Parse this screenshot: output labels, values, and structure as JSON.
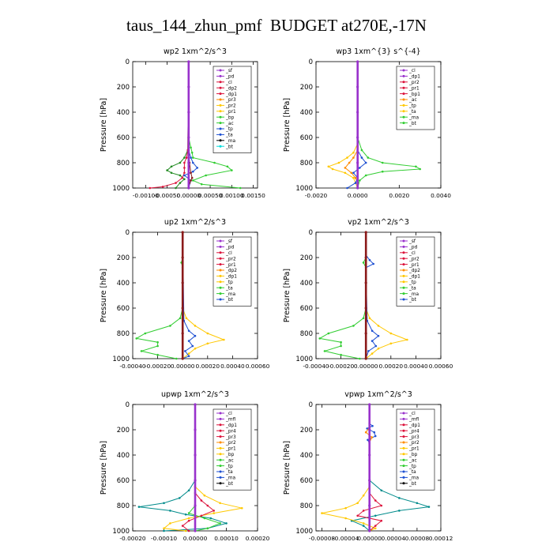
{
  "page": {
    "title": "taus_144_zhun_pmf  BUDGET at270E,-17N"
  },
  "colors": {
    "purple": "#9932cc",
    "red": "#dc143c",
    "orange": "#ff8c00",
    "yellow": "#ffc800",
    "green": "#32cd32",
    "darkgreen": "#228b22",
    "blue": "#1e50d2",
    "teal": "#008b8b",
    "cyan": "#00dcdc",
    "maroon": "#8b1a1a",
    "black": "#000000"
  },
  "chart_data": [
    {
      "type": "line",
      "title": "wp2  1xm^2/s^3",
      "ylabel": "Pressure [hPa]",
      "xlim": [
        -0.0013,
        0.0016
      ],
      "ylim": [
        1000,
        0
      ],
      "xticks": [
        "-0.00100",
        "-0.00050",
        "0.00000",
        "0.00050",
        "0.00100",
        "0.00150"
      ],
      "xtick_values": [
        -0.001,
        -0.0005,
        0,
        0.0005,
        0.001,
        0.0015
      ],
      "yticks": [
        0,
        200,
        400,
        600,
        800,
        1000
      ],
      "grid": false,
      "legend_position": "top-right",
      "legend": [
        "_sf",
        "_pd",
        "_cl",
        "_dp2",
        "_dp1",
        "_pr3",
        "_pr2",
        "_pr1",
        "_bp",
        "_ac",
        "_tp",
        "_ta",
        "_ma",
        "_bt"
      ],
      "series": [
        {
          "name": "_pr1",
          "color": "green",
          "y": [
            0,
            600,
            680,
            720,
            760,
            800,
            830,
            860,
            900,
            940,
            970,
            1000
          ],
          "x": [
            0,
            0,
            5e-05,
            8e-05,
            0.0001,
            0.0006,
            0.0009,
            0.001,
            0.0004,
            0.0001,
            0.0003,
            0.0012
          ]
        },
        {
          "name": "_bp",
          "color": "darkgreen",
          "y": [
            0,
            700,
            760,
            800,
            830,
            860,
            880,
            900,
            930,
            960,
            1000
          ],
          "x": [
            0,
            -2e-05,
            -0.0001,
            -0.0002,
            -0.0004,
            -0.0005,
            -0.0004,
            -0.0002,
            -0.0001,
            -0.0002,
            -0.0003
          ]
        },
        {
          "name": "_dp2",
          "color": "red",
          "y": [
            0,
            700,
            760,
            800,
            840,
            880,
            920,
            960,
            990,
            1000
          ],
          "x": [
            0,
            -2e-05,
            -5e-05,
            -0.0001,
            -0.0001,
            -0.0001,
            -0.00015,
            -0.0003,
            -0.0006,
            -0.0009
          ]
        },
        {
          "name": "_tp",
          "color": "blue",
          "y": [
            0,
            700,
            760,
            800,
            840,
            870,
            900,
            940,
            1000
          ],
          "x": [
            0,
            0,
            5e-05,
            0.0001,
            0.0002,
            0.0001,
            -0.0001,
            5e-05,
            0
          ]
        },
        {
          "name": "_dp1",
          "color": "maroon",
          "y": [
            0,
            700,
            800,
            880,
            920,
            940,
            960,
            1000
          ],
          "x": [
            0,
            0,
            2e-05,
            5e-05,
            8e-05,
            5e-05,
            2e-05,
            0
          ]
        },
        {
          "name": "_sf",
          "color": "purple",
          "y": [
            0,
            200,
            400,
            600,
            800,
            1000
          ],
          "x": [
            0,
            0,
            0,
            0,
            0,
            0
          ]
        }
      ]
    },
    {
      "type": "line",
      "title": "wp3  1xm^{3} s^{-4}",
      "ylabel": "Pressure [hPa]",
      "xlim": [
        -0.002,
        0.004
      ],
      "ylim": [
        1000,
        0
      ],
      "xticks": [
        "-0.0020",
        "0.0000",
        "0.0020",
        "0.0040"
      ],
      "xtick_values": [
        -0.002,
        0,
        0.002,
        0.004
      ],
      "yticks": [
        0,
        200,
        400,
        600,
        800,
        1000
      ],
      "grid": false,
      "legend_position": "top-right",
      "legend": [
        "_cl",
        "_dp1",
        "_pr2",
        "_pr1",
        "_bp1",
        "_ac",
        "_tp",
        "_ta",
        "_ma",
        "_bt"
      ],
      "series": [
        {
          "name": "_bp1",
          "color": "green",
          "y": [
            0,
            600,
            700,
            760,
            800,
            830,
            850,
            870,
            900,
            940,
            1000
          ],
          "x": [
            0,
            0,
            0.0002,
            0.0005,
            0.0012,
            0.0028,
            0.003,
            0.0012,
            0.0004,
            0.0001,
            0
          ]
        },
        {
          "name": "_pr2",
          "color": "yellow",
          "y": [
            0,
            650,
            720,
            760,
            800,
            830,
            850,
            880,
            920,
            960,
            1000
          ],
          "x": [
            0,
            0,
            -0.0002,
            -0.0005,
            -0.0009,
            -0.0014,
            -0.0012,
            -0.0006,
            -0.0002,
            -0.0001,
            0
          ]
        },
        {
          "name": "_pr1",
          "color": "orange",
          "y": [
            0,
            700,
            760,
            800,
            840,
            880,
            920,
            960,
            1000
          ],
          "x": [
            0,
            0,
            -0.0002,
            -0.0004,
            -0.0006,
            -0.0003,
            -0.0001,
            0,
            0
          ]
        },
        {
          "name": "_tp",
          "color": "blue",
          "y": [
            0,
            700,
            760,
            800,
            840,
            880,
            920,
            960,
            1000
          ],
          "x": [
            0,
            0,
            0.0002,
            0.0004,
            0.0001,
            -0.0002,
            0,
            -0.0001,
            -0.0005
          ]
        },
        {
          "name": "_cl",
          "color": "purple",
          "y": [
            0,
            200,
            400,
            600,
            800,
            1000
          ],
          "x": [
            0,
            0,
            0,
            0,
            0,
            0
          ]
        }
      ]
    },
    {
      "type": "line",
      "title": "up2  1xm^2/s^3",
      "ylabel": "Pressure [hPa]",
      "xlim": [
        -0.0004,
        0.0006
      ],
      "ylim": [
        1000,
        0
      ],
      "xticks": [
        "-0.00040",
        "-0.00020",
        "0.00000",
        "0.00020",
        "0.00040",
        "0.00060"
      ],
      "xtick_values": [
        -0.0004,
        -0.0002,
        0,
        0.0002,
        0.0004,
        0.0006
      ],
      "yticks": [
        0,
        200,
        400,
        600,
        800,
        1000
      ],
      "grid": false,
      "legend_position": "top-right",
      "legend": [
        "_sf",
        "_pd",
        "_cl",
        "_pr2",
        "_pr1",
        "_dp2",
        "_dp1",
        "_tp",
        "_ta",
        "_ma",
        "_bt"
      ],
      "series": [
        {
          "name": "_dp2",
          "color": "green",
          "y": [
            0,
            200,
            240,
            280,
            600,
            680,
            740,
            800,
            840,
            870,
            900,
            940,
            970,
            1000
          ],
          "x": [
            0,
            0,
            -1e-05,
            0,
            0,
            -2e-05,
            -0.0001,
            -0.0003,
            -0.00037,
            -0.0002,
            -0.0002,
            -0.00033,
            -0.0002,
            -5e-05
          ]
        },
        {
          "name": "_pr2",
          "color": "yellow",
          "y": [
            0,
            600,
            680,
            740,
            800,
            850,
            880,
            920,
            960,
            1000
          ],
          "x": [
            0,
            0,
            3e-05,
            0.0001,
            0.0002,
            0.00033,
            0.0002,
            0.0001,
            5e-05,
            0
          ]
        },
        {
          "name": "_tp",
          "color": "blue",
          "y": [
            0,
            700,
            780,
            820,
            860,
            900,
            940,
            980,
            1000
          ],
          "x": [
            0,
            1e-05,
            5e-05,
            0.0001,
            5e-05,
            8e-05,
            2e-05,
            5e-05,
            0
          ]
        },
        {
          "name": "_sf",
          "color": "maroon",
          "y": [
            0,
            200,
            400,
            600,
            800,
            1000
          ],
          "x": [
            0,
            0,
            0,
            0,
            0,
            0
          ]
        }
      ]
    },
    {
      "type": "line",
      "title": "vp2  1xm^2/s^3",
      "ylabel": "Pressure [hPa]",
      "xlim": [
        -0.0004,
        0.0006
      ],
      "ylim": [
        1000,
        0
      ],
      "xticks": [
        "-0.00040",
        "-0.00020",
        "0.00000",
        "0.00020",
        "0.00040",
        "0.00060"
      ],
      "xtick_values": [
        -0.0004,
        -0.0002,
        0,
        0.0002,
        0.0004,
        0.0006
      ],
      "yticks": [
        0,
        200,
        400,
        600,
        800,
        1000
      ],
      "grid": false,
      "legend_position": "top-right",
      "legend": [
        "_sf",
        "_pd",
        "_cl",
        "_pr2",
        "_pr1",
        "_dp2",
        "_dp1",
        "_tp",
        "_ta",
        "_ma",
        "_bt"
      ],
      "series": [
        {
          "name": "_dp2",
          "color": "green",
          "y": [
            0,
            200,
            240,
            280,
            600,
            680,
            740,
            800,
            840,
            870,
            900,
            940,
            970,
            1000
          ],
          "x": [
            0,
            0,
            -2e-05,
            0,
            0,
            -2e-05,
            -0.0001,
            -0.0003,
            -0.00037,
            -0.0002,
            -0.0002,
            -0.00033,
            -0.0002,
            -5e-05
          ]
        },
        {
          "name": "_pr2",
          "color": "yellow",
          "y": [
            0,
            600,
            680,
            740,
            800,
            850,
            880,
            920,
            960,
            1000
          ],
          "x": [
            0,
            0,
            3e-05,
            0.0001,
            0.0002,
            0.00033,
            0.0002,
            0.0001,
            5e-05,
            0
          ]
        },
        {
          "name": "_tp",
          "color": "blue",
          "y": [
            0,
            180,
            220,
            250,
            280,
            700,
            780,
            820,
            860,
            900,
            940,
            1000
          ],
          "x": [
            0,
            0,
            3e-05,
            6e-05,
            0,
            1e-05,
            5e-05,
            0.0001,
            5e-05,
            8e-05,
            2e-05,
            0
          ]
        },
        {
          "name": "_sf",
          "color": "maroon",
          "y": [
            0,
            200,
            400,
            600,
            800,
            1000
          ],
          "x": [
            0,
            0,
            0,
            0,
            0,
            0
          ]
        }
      ]
    },
    {
      "type": "line",
      "title": "upwp  1xm^2/s^3",
      "ylabel": "Pressure [hPa]",
      "xlim": [
        -0.0002,
        0.0002
      ],
      "ylim": [
        1000,
        0
      ],
      "xticks": [
        "-0.00020",
        "-0.00010",
        "0.00000",
        "0.00010",
        "0.00020"
      ],
      "xtick_values": [
        -0.0002,
        -0.0001,
        0,
        0.0001,
        0.0002
      ],
      "yticks": [
        0,
        200,
        400,
        600,
        800,
        1000
      ],
      "grid": false,
      "legend_position": "top-right",
      "legend": [
        "_cl",
        "_mfl",
        "_dp1",
        "_pr4",
        "_pr3",
        "_pr2",
        "_pr1",
        "_bp",
        "_ac",
        "_tp",
        "_ta",
        "_ma",
        "_bt"
      ],
      "series": [
        {
          "name": "_tp",
          "color": "teal",
          "y": [
            0,
            600,
            680,
            740,
            780,
            810,
            840,
            870,
            900,
            940,
            980,
            1000
          ],
          "x": [
            0,
            0,
            -2e-05,
            -5e-05,
            -0.0001,
            -0.00018,
            -8e-05,
            -3e-05,
            5e-05,
            0.0001,
            4e-05,
            -0.0001
          ]
        },
        {
          "name": "_pr2",
          "color": "yellow",
          "y": [
            0,
            650,
            720,
            780,
            820,
            860,
            900,
            940,
            980,
            1000
          ],
          "x": [
            0,
            0,
            3e-05,
            8e-05,
            0.00015,
            6e-05,
            -2e-05,
            -8e-05,
            -0.0001,
            -3e-05
          ]
        },
        {
          "name": "_dp1",
          "color": "red",
          "y": [
            0,
            700,
            760,
            800,
            840,
            880,
            920,
            960,
            1000
          ],
          "x": [
            0,
            0,
            2e-05,
            4e-05,
            6e-05,
            2e-05,
            -2e-05,
            -4e-05,
            -2e-05
          ]
        },
        {
          "name": "_bp",
          "color": "green",
          "y": [
            0,
            800,
            860,
            900,
            940,
            980,
            1000
          ],
          "x": [
            0,
            0,
            -2e-05,
            3e-05,
            8e-05,
            4e-05,
            0
          ]
        },
        {
          "name": "_cl",
          "color": "purple",
          "y": [
            0,
            200,
            400,
            600,
            800,
            1000
          ],
          "x": [
            0,
            0,
            0,
            0,
            0,
            0
          ]
        }
      ]
    },
    {
      "type": "line",
      "title": "vpwp  1xm^2/s^3",
      "ylabel": "Pressure [hPa]",
      "xlim": [
        -9e-05,
        0.00012
      ],
      "ylim": [
        1000,
        0
      ],
      "xticks": [
        "-0.00008",
        "-0.00004",
        "0.00000",
        "0.00004",
        "0.00008",
        "0.00012"
      ],
      "xtick_values": [
        -8e-05,
        -4e-05,
        0,
        4e-05,
        8e-05,
        0.00012
      ],
      "yticks": [
        0,
        200,
        400,
        600,
        800,
        1000
      ],
      "grid": false,
      "legend_position": "top-right",
      "legend": [
        "_cl",
        "_mfl",
        "_dp1",
        "_pr4",
        "_pr3",
        "_pr2",
        "_pr1",
        "_bp",
        "_ac",
        "_tp",
        "_ta",
        "_ma",
        "_bt"
      ],
      "series": [
        {
          "name": "_tp",
          "color": "teal",
          "y": [
            0,
            600,
            680,
            740,
            780,
            810,
            840,
            880,
            920,
            960,
            1000
          ],
          "x": [
            0,
            0,
            2e-05,
            5e-05,
            8e-05,
            0.0001,
            5e-05,
            1e-05,
            -3e-05,
            -1e-05,
            0
          ]
        },
        {
          "name": "_pr2",
          "color": "yellow",
          "y": [
            0,
            650,
            720,
            780,
            820,
            860,
            900,
            940,
            980,
            1000
          ],
          "x": [
            0,
            0,
            -1e-05,
            -2e-05,
            -4e-05,
            -8e-05,
            -4e-05,
            -1e-05,
            1e-05,
            0
          ]
        },
        {
          "name": "_dp1",
          "color": "red",
          "y": [
            0,
            700,
            760,
            800,
            840,
            880,
            920,
            960,
            1000
          ],
          "x": [
            0,
            0,
            1e-05,
            2e-05,
            -1e-05,
            -2e-05,
            2e-05,
            1e-05,
            0
          ]
        },
        {
          "name": "_ta",
          "color": "blue",
          "y": [
            0,
            150,
            170,
            190,
            220,
            250,
            280,
            310,
            1000
          ],
          "x": [
            0,
            0,
            5e-06,
            -4e-06,
            8e-06,
            1e-05,
            -3e-06,
            0,
            0
          ]
        },
        {
          "name": "_pr1",
          "color": "orange",
          "y": [
            0,
            180,
            220,
            260,
            300,
            1000
          ],
          "x": [
            0,
            0,
            -6e-06,
            4e-06,
            0,
            0
          ]
        },
        {
          "name": "_cl",
          "color": "purple",
          "y": [
            0,
            200,
            400,
            600,
            800,
            1000
          ],
          "x": [
            0,
            0,
            0,
            0,
            0,
            0
          ]
        }
      ]
    }
  ]
}
